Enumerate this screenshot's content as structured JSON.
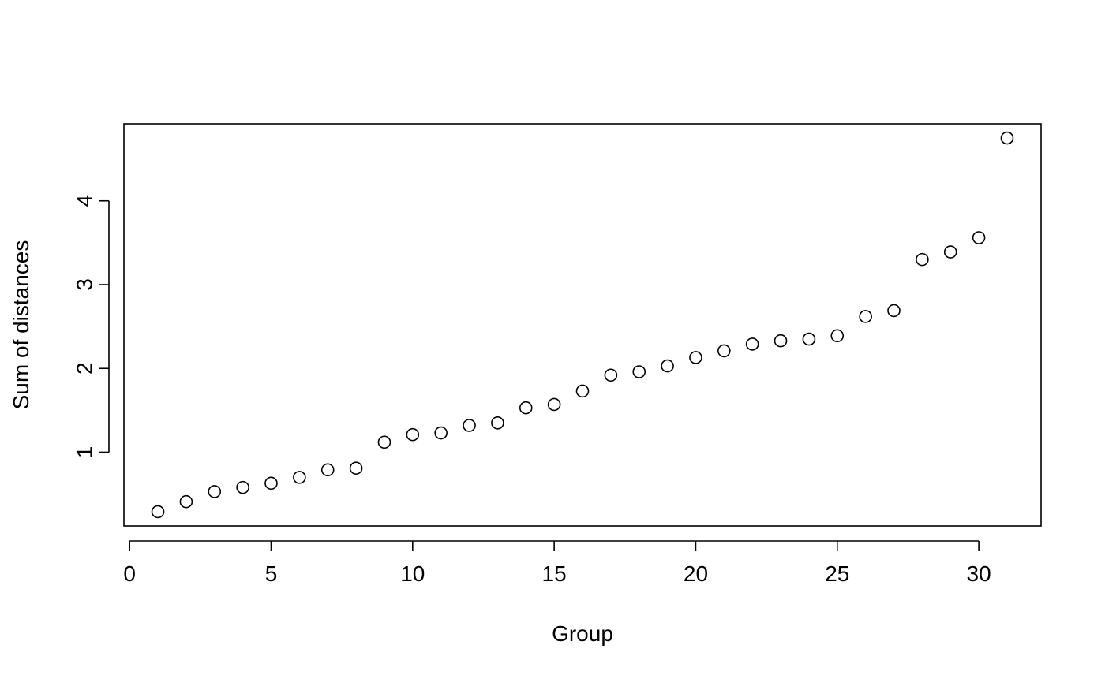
{
  "chart_data": {
    "type": "scatter",
    "title": "",
    "xlabel": "Group",
    "ylabel": "Sum of distances",
    "xlim": [
      -0.2,
      32.2
    ],
    "ylim": [
      0.12,
      4.92
    ],
    "x_ticks": [
      0,
      5,
      10,
      15,
      20,
      25,
      30
    ],
    "y_ticks": [
      1,
      2,
      3,
      4
    ],
    "grid": false,
    "marker": "open-circle",
    "colors": {
      "points": "#000000",
      "axes": "#000000",
      "background": "#ffffff"
    },
    "points": [
      {
        "x": 1,
        "y": 0.29
      },
      {
        "x": 2,
        "y": 0.41
      },
      {
        "x": 3,
        "y": 0.53
      },
      {
        "x": 4,
        "y": 0.58
      },
      {
        "x": 5,
        "y": 0.63
      },
      {
        "x": 6,
        "y": 0.7
      },
      {
        "x": 7,
        "y": 0.79
      },
      {
        "x": 8,
        "y": 0.81
      },
      {
        "x": 9,
        "y": 1.12
      },
      {
        "x": 10,
        "y": 1.21
      },
      {
        "x": 11,
        "y": 1.23
      },
      {
        "x": 12,
        "y": 1.32
      },
      {
        "x": 13,
        "y": 1.35
      },
      {
        "x": 14,
        "y": 1.53
      },
      {
        "x": 15,
        "y": 1.57
      },
      {
        "x": 16,
        "y": 1.73
      },
      {
        "x": 17,
        "y": 1.92
      },
      {
        "x": 18,
        "y": 1.96
      },
      {
        "x": 19,
        "y": 2.03
      },
      {
        "x": 20,
        "y": 2.13
      },
      {
        "x": 21,
        "y": 2.21
      },
      {
        "x": 22,
        "y": 2.29
      },
      {
        "x": 23,
        "y": 2.33
      },
      {
        "x": 24,
        "y": 2.35
      },
      {
        "x": 25,
        "y": 2.39
      },
      {
        "x": 26,
        "y": 2.62
      },
      {
        "x": 27,
        "y": 2.69
      },
      {
        "x": 28,
        "y": 3.3
      },
      {
        "x": 29,
        "y": 3.39
      },
      {
        "x": 30,
        "y": 3.56
      },
      {
        "x": 31,
        "y": 4.75
      }
    ]
  }
}
